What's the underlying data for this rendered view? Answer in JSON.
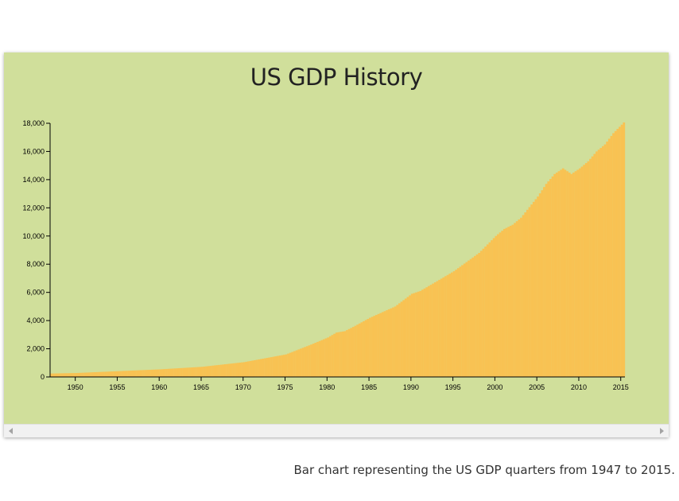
{
  "colors": {
    "panel_background": "#d0df9b",
    "bar_fill": "#f8c253"
  },
  "caption": "Bar chart representing the US GDP quarters from 1947 to 2015.",
  "scrollbar": {
    "left_icon": "chevron-left-icon",
    "right_icon": "chevron-right-icon"
  },
  "chart_data": {
    "type": "bar",
    "title": "US GDP History",
    "xlabel": "",
    "ylabel": "",
    "x_range": [
      1947,
      2015.5
    ],
    "ylim": [
      0,
      18000
    ],
    "grid": false,
    "x_ticks": [
      "1950",
      "1955",
      "1960",
      "1965",
      "1970",
      "1975",
      "1980",
      "1985",
      "1990",
      "1995",
      "2000",
      "2005",
      "2010",
      "2015"
    ],
    "y_ticks": [
      "0",
      "2,000",
      "4,000",
      "6,000",
      "8,000",
      "10,000",
      "12,000",
      "14,000",
      "16,000",
      "18,000"
    ],
    "gdp_anchor_points": [
      [
        1947.0,
        243
      ],
      [
        1950.0,
        280
      ],
      [
        1955.0,
        410
      ],
      [
        1960.0,
        540
      ],
      [
        1965.0,
        720
      ],
      [
        1970.0,
        1050
      ],
      [
        1975.0,
        1600
      ],
      [
        1978.0,
        2300
      ],
      [
        1980.0,
        2800
      ],
      [
        1981.0,
        3150
      ],
      [
        1982.0,
        3250
      ],
      [
        1983.0,
        3550
      ],
      [
        1985.0,
        4200
      ],
      [
        1988.0,
        5000
      ],
      [
        1990.0,
        5900
      ],
      [
        1991.0,
        6100
      ],
      [
        1995.0,
        7500
      ],
      [
        1998.0,
        8800
      ],
      [
        2000.0,
        10000
      ],
      [
        2001.0,
        10500
      ],
      [
        2002.0,
        10800
      ],
      [
        2003.0,
        11300
      ],
      [
        2005.0,
        12800
      ],
      [
        2006.0,
        13700
      ],
      [
        2007.0,
        14400
      ],
      [
        2008.0,
        14800
      ],
      [
        2009.0,
        14400
      ],
      [
        2010.0,
        14800
      ],
      [
        2011.0,
        15300
      ],
      [
        2012.0,
        16000
      ],
      [
        2013.0,
        16500
      ],
      [
        2014.0,
        17300
      ],
      [
        2015.0,
        17900
      ],
      [
        2015.25,
        18060
      ]
    ]
  }
}
